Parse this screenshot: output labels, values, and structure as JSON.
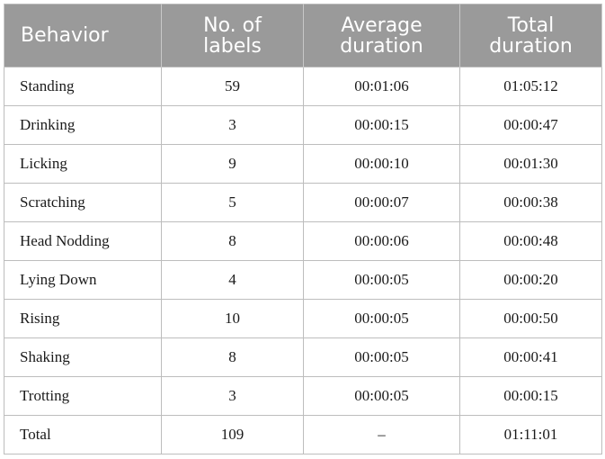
{
  "table": {
    "headers": [
      {
        "lines": [
          "Behavior"
        ]
      },
      {
        "lines": [
          "No. of",
          "labels"
        ]
      },
      {
        "lines": [
          "Average",
          "duration"
        ]
      },
      {
        "lines": [
          "Total",
          "duration"
        ]
      }
    ],
    "rows": [
      {
        "behavior": "Standing",
        "labels": "59",
        "average": "00:01:06",
        "total": "01:05:12"
      },
      {
        "behavior": "Drinking",
        "labels": "3",
        "average": "00:00:15",
        "total": "00:00:47"
      },
      {
        "behavior": "Licking",
        "labels": "9",
        "average": "00:00:10",
        "total": "00:01:30"
      },
      {
        "behavior": "Scratching",
        "labels": "5",
        "average": "00:00:07",
        "total": "00:00:38"
      },
      {
        "behavior": "Head Nodding",
        "labels": "8",
        "average": "00:00:06",
        "total": "00:00:48"
      },
      {
        "behavior": "Lying Down",
        "labels": "4",
        "average": "00:00:05",
        "total": "00:00:20"
      },
      {
        "behavior": "Rising",
        "labels": "10",
        "average": "00:00:05",
        "total": "00:00:50"
      },
      {
        "behavior": "Shaking",
        "labels": "8",
        "average": "00:00:05",
        "total": "00:00:41"
      },
      {
        "behavior": "Trotting",
        "labels": "3",
        "average": "00:00:05",
        "total": "00:00:15"
      },
      {
        "behavior": "Total",
        "labels": "109",
        "average": "–",
        "total": "01:11:01"
      }
    ]
  }
}
